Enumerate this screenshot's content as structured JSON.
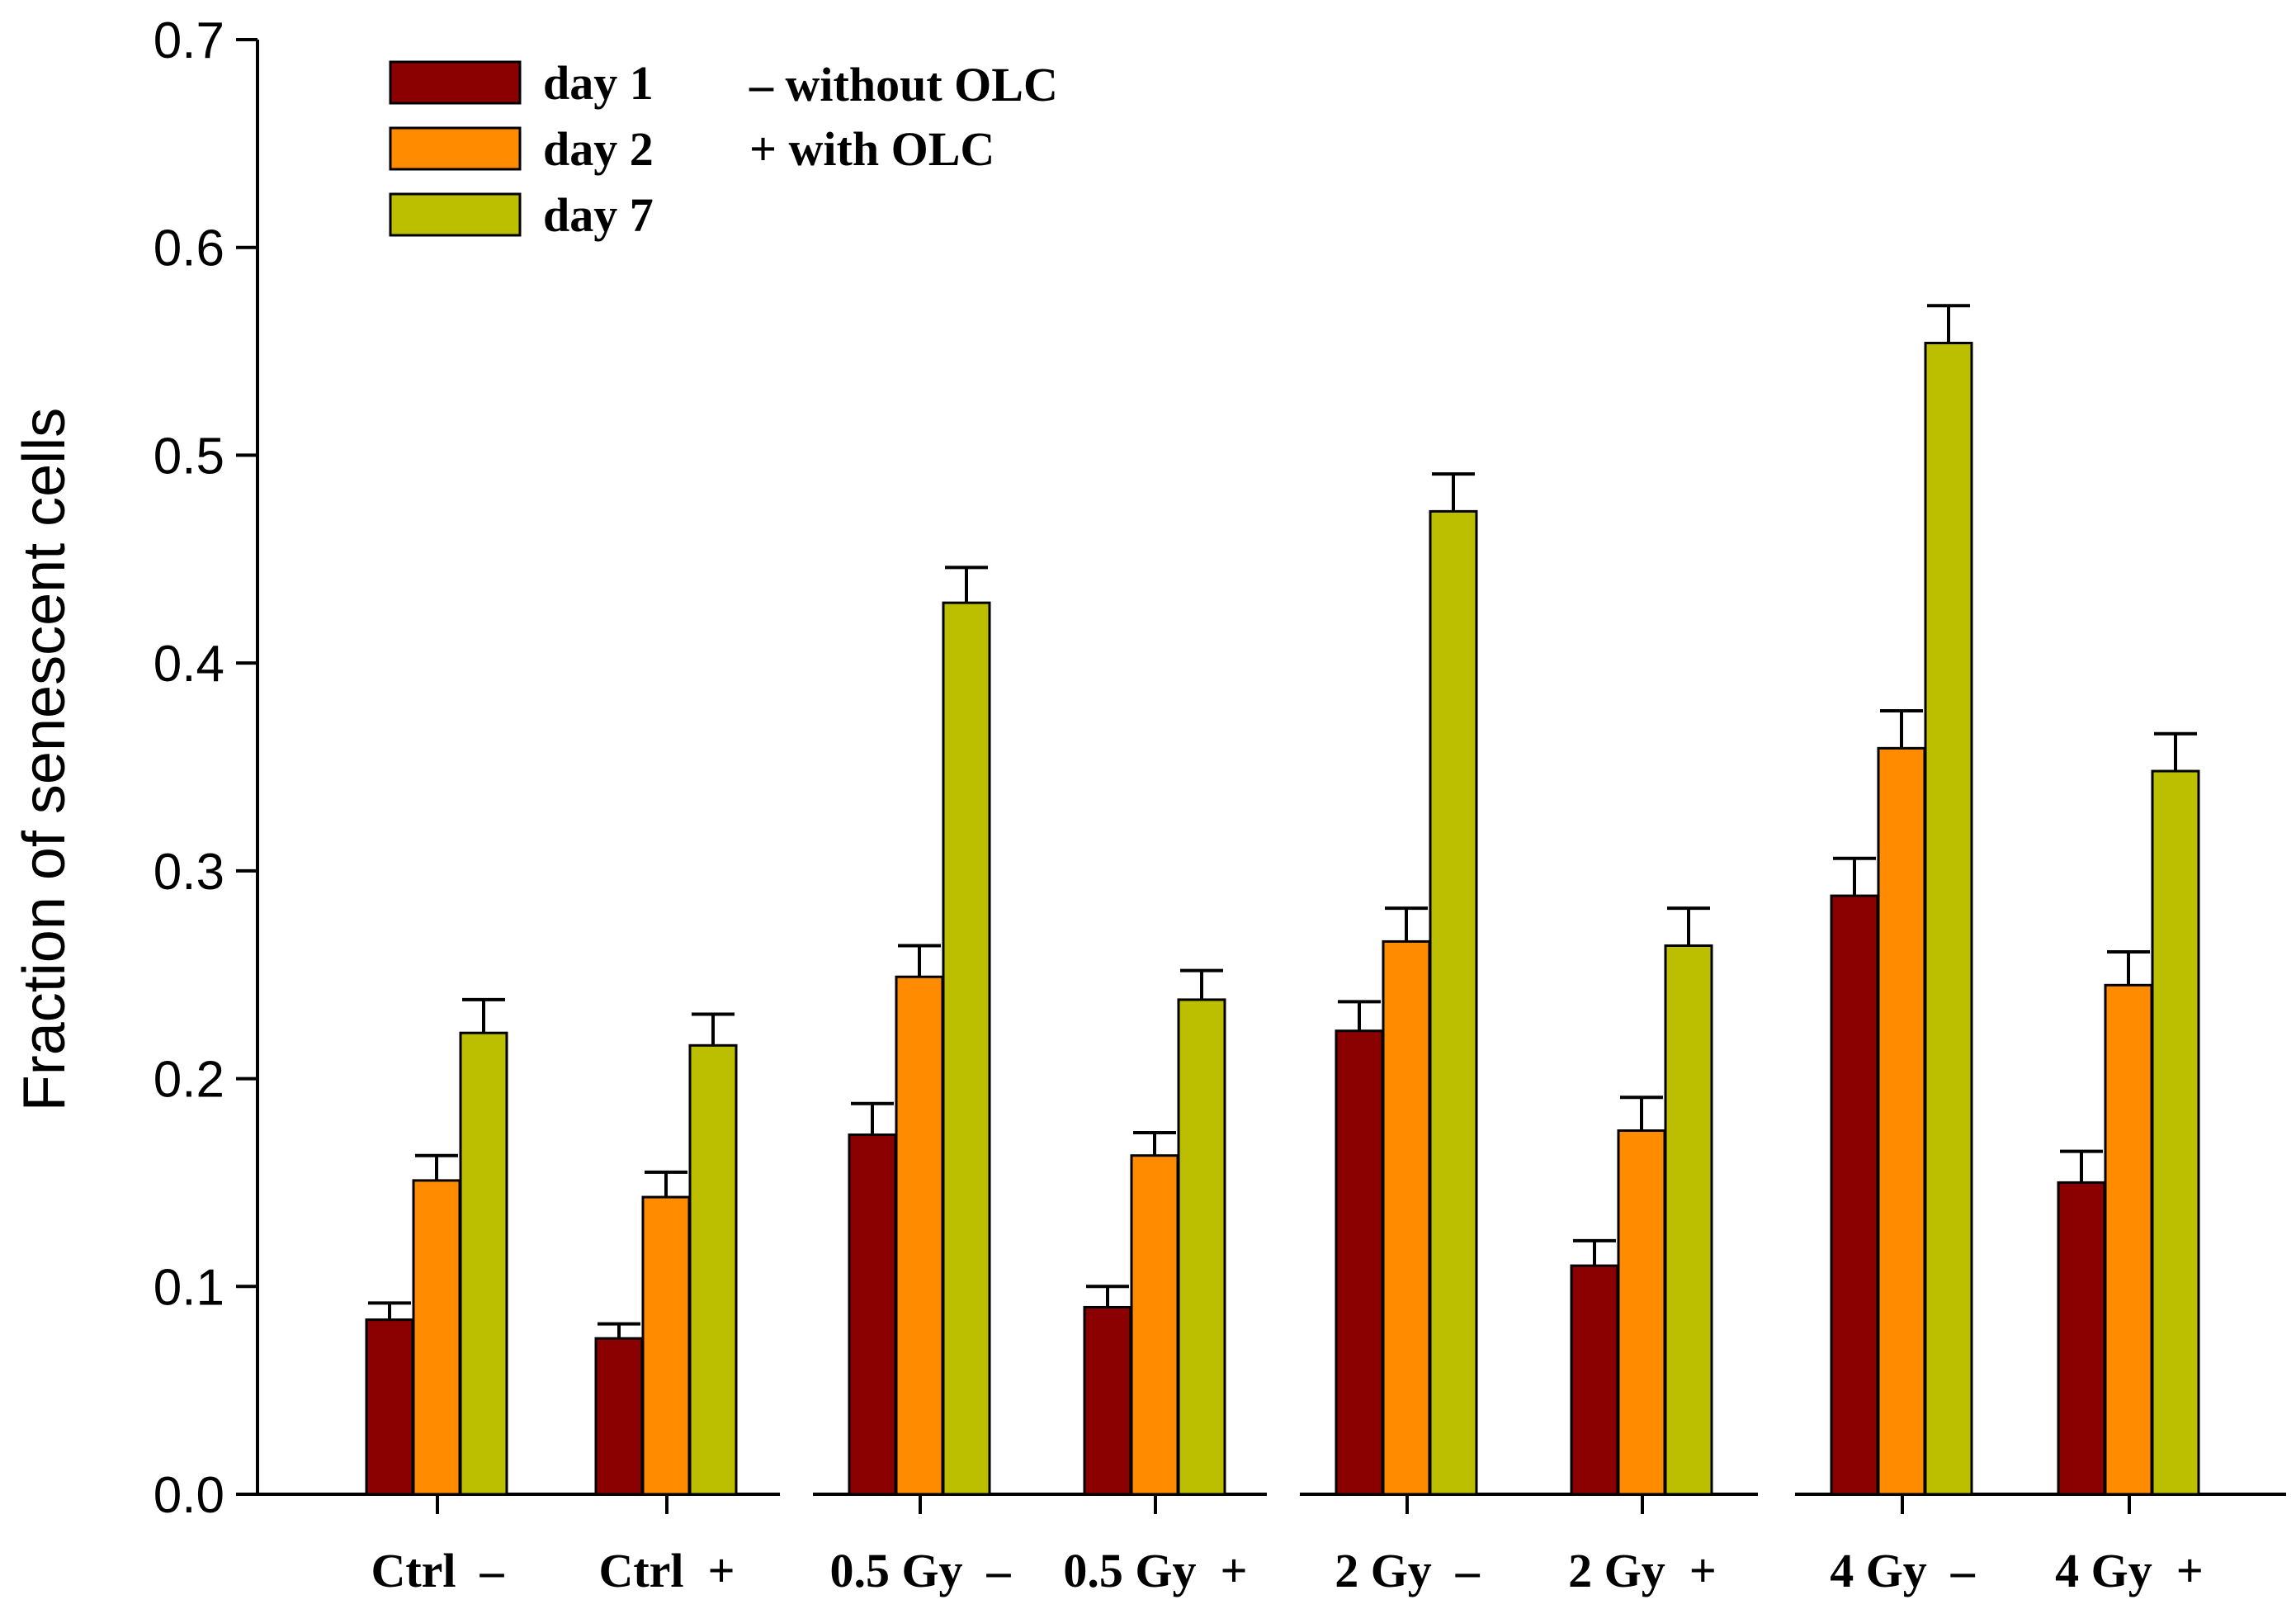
{
  "chart_data": {
    "type": "bar",
    "title": "",
    "xlabel": "",
    "ylabel": "Fraction of senescent cells",
    "ylim": [
      0,
      0.7
    ],
    "yticks": [
      "0.0",
      "0.1",
      "0.2",
      "0.3",
      "0.4",
      "0.5",
      "0.6",
      "0.7"
    ],
    "categories": [
      "Ctrl  –",
      "Ctrl  +",
      "0.5 Gy  –",
      "0.5 Gy  +",
      "2 Gy  –",
      "2 Gy  +",
      "4 Gy  –",
      "4 Gy  +"
    ],
    "series": [
      {
        "name": "day 1",
        "color": "#8b0000",
        "values": [
          0.084,
          0.075,
          0.173,
          0.09,
          0.223,
          0.11,
          0.288,
          0.15
        ],
        "errors": [
          0.008,
          0.007,
          0.015,
          0.01,
          0.014,
          0.012,
          0.018,
          0.015
        ]
      },
      {
        "name": "day 2",
        "color": "#ff8c00",
        "values": [
          0.151,
          0.143,
          0.249,
          0.163,
          0.266,
          0.175,
          0.359,
          0.245
        ],
        "errors": [
          0.012,
          0.012,
          0.015,
          0.011,
          0.016,
          0.016,
          0.018,
          0.016
        ]
      },
      {
        "name": "day 7",
        "color": "#bcbf00",
        "values": [
          0.222,
          0.216,
          0.429,
          0.238,
          0.473,
          0.264,
          0.554,
          0.348
        ],
        "errors": [
          0.016,
          0.015,
          0.017,
          0.014,
          0.018,
          0.018,
          0.018,
          0.018
        ]
      }
    ],
    "legend_position": "top-left",
    "legend_notes": [
      "–  without OLC",
      "+  with OLC"
    ],
    "grid": false
  }
}
